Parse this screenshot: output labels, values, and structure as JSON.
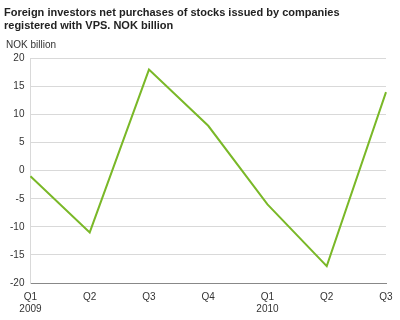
{
  "chart_data": {
    "type": "line",
    "title": [
      "Foreign investors net purchases of stocks issued by companies",
      "registered with VPS. NOK billion"
    ],
    "ylabel": "NOK billion",
    "categories": [
      "Q1 2009",
      "Q2",
      "Q3",
      "Q4",
      "Q1 2010",
      "Q2",
      "Q3"
    ],
    "values": [
      -1,
      -11,
      18,
      8,
      -6,
      -17,
      14
    ],
    "color": "#7ab828",
    "ylim": [
      -20,
      20
    ],
    "yticks": [
      -20,
      -15,
      -10,
      -5,
      0,
      5,
      10,
      15,
      20
    ],
    "grid": true
  }
}
